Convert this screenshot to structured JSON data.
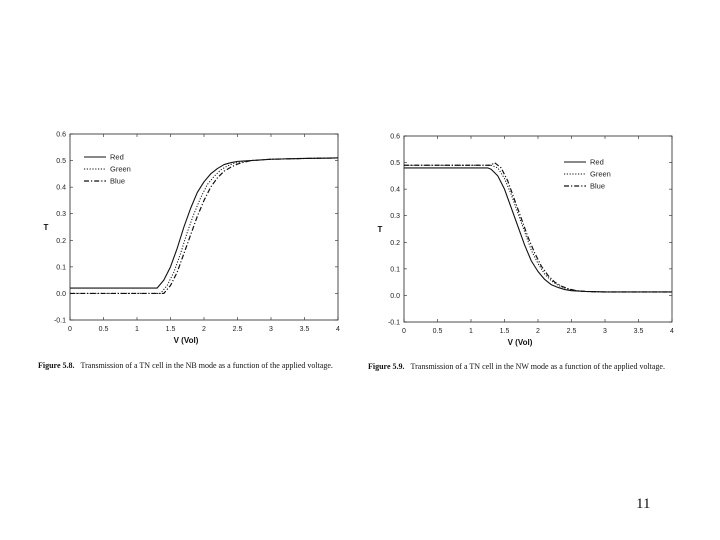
{
  "page_number": "11",
  "chart_data": [
    {
      "type": "line",
      "figure_label": "Figure 5.8.",
      "caption": "Transmission of a TN cell in the NB mode as a function of the applied voltage.",
      "xlabel": "V (Vol)",
      "ylabel": "T",
      "xlim": [
        0,
        4
      ],
      "ylim": [
        -0.1,
        0.6
      ],
      "x_ticks": [
        "0",
        "0.5",
        "1",
        "1.5",
        "2",
        "2.5",
        "3",
        "3.5",
        "4"
      ],
      "y_ticks": [
        "-0.1",
        "0.0",
        "0.1",
        "0.2",
        "0.3",
        "0.4",
        "0.5",
        "0.6"
      ],
      "grid": false,
      "legend_position": "top-left",
      "series": [
        {
          "name": "Red",
          "style": "solid",
          "x": [
            0,
            1.3,
            1.4,
            1.5,
            1.6,
            1.7,
            1.8,
            1.9,
            2.0,
            2.1,
            2.2,
            2.3,
            2.4,
            2.5,
            2.7,
            3.0,
            3.5,
            4.0
          ],
          "y": [
            0.02,
            0.02,
            0.05,
            0.1,
            0.17,
            0.25,
            0.32,
            0.38,
            0.42,
            0.45,
            0.47,
            0.485,
            0.492,
            0.497,
            0.5,
            0.505,
            0.508,
            0.51
          ]
        },
        {
          "name": "Green",
          "style": "dotted",
          "x": [
            0,
            1.35,
            1.45,
            1.55,
            1.65,
            1.75,
            1.85,
            1.95,
            2.05,
            2.15,
            2.25,
            2.35,
            2.45,
            2.55,
            2.7,
            3.0,
            3.5,
            4.0
          ],
          "y": [
            0.0,
            0.0,
            0.03,
            0.08,
            0.15,
            0.23,
            0.3,
            0.36,
            0.41,
            0.44,
            0.465,
            0.48,
            0.49,
            0.495,
            0.5,
            0.505,
            0.508,
            0.51
          ]
        },
        {
          "name": "Blue",
          "style": "dash-dot",
          "x": [
            0,
            1.4,
            1.5,
            1.6,
            1.7,
            1.8,
            1.9,
            2.0,
            2.1,
            2.2,
            2.3,
            2.4,
            2.5,
            2.6,
            2.7,
            3.0,
            3.5,
            4.0
          ],
          "y": [
            0.0,
            0.0,
            0.03,
            0.08,
            0.15,
            0.22,
            0.29,
            0.35,
            0.4,
            0.435,
            0.46,
            0.475,
            0.487,
            0.494,
            0.5,
            0.505,
            0.508,
            0.51
          ]
        }
      ]
    },
    {
      "type": "line",
      "figure_label": "Figure 5.9.",
      "caption": "Transmission of a TN cell in the NW mode as a function of the applied voltage.",
      "xlabel": "V (Vol)",
      "ylabel": "T",
      "xlim": [
        0,
        4
      ],
      "ylim": [
        -0.1,
        0.6
      ],
      "x_ticks": [
        "0",
        "0.5",
        "1",
        "1.5",
        "2",
        "2.5",
        "3",
        "3.5",
        "4"
      ],
      "y_ticks": [
        "-0.1",
        "0.0",
        "0.1",
        "0.2",
        "0.3",
        "0.4",
        "0.5",
        "0.6"
      ],
      "grid": false,
      "legend_position": "top-right",
      "series": [
        {
          "name": "Red",
          "style": "solid",
          "x": [
            0,
            1.25,
            1.3,
            1.4,
            1.5,
            1.6,
            1.7,
            1.8,
            1.9,
            2.0,
            2.1,
            2.2,
            2.3,
            2.4,
            2.5,
            2.7,
            3.0,
            4.0
          ],
          "y": [
            0.48,
            0.48,
            0.475,
            0.45,
            0.4,
            0.33,
            0.26,
            0.19,
            0.13,
            0.09,
            0.06,
            0.04,
            0.03,
            0.022,
            0.018,
            0.015,
            0.013,
            0.013
          ]
        },
        {
          "name": "Green",
          "style": "dotted",
          "x": [
            0,
            1.3,
            1.4,
            1.5,
            1.6,
            1.7,
            1.8,
            1.9,
            2.0,
            2.1,
            2.2,
            2.3,
            2.4,
            2.5,
            2.6,
            2.7,
            3.0,
            4.0
          ],
          "y": [
            0.49,
            0.49,
            0.48,
            0.44,
            0.38,
            0.31,
            0.24,
            0.17,
            0.12,
            0.08,
            0.055,
            0.038,
            0.028,
            0.021,
            0.017,
            0.015,
            0.013,
            0.013
          ]
        },
        {
          "name": "Blue",
          "style": "dash-dot",
          "x": [
            0,
            1.3,
            1.35,
            1.45,
            1.55,
            1.65,
            1.75,
            1.85,
            1.95,
            2.05,
            2.15,
            2.25,
            2.35,
            2.45,
            2.55,
            2.7,
            3.0,
            4.0
          ],
          "y": [
            0.49,
            0.49,
            0.5,
            0.48,
            0.43,
            0.36,
            0.29,
            0.22,
            0.16,
            0.11,
            0.075,
            0.05,
            0.035,
            0.025,
            0.019,
            0.015,
            0.013,
            0.013
          ]
        }
      ]
    }
  ]
}
